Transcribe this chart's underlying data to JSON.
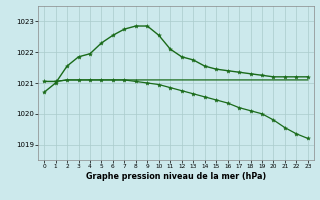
{
  "title": "Graphe pression niveau de la mer (hPa)",
  "bg_color": "#cce9ec",
  "grid_color": "#aacccc",
  "line_color": "#1a6b1a",
  "xlim": [
    -0.5,
    23.5
  ],
  "ylim": [
    1018.5,
    1023.5
  ],
  "yticks": [
    1019,
    1020,
    1021,
    1022,
    1023
  ],
  "xticks": [
    0,
    1,
    2,
    3,
    4,
    5,
    6,
    7,
    8,
    9,
    10,
    11,
    12,
    13,
    14,
    15,
    16,
    17,
    18,
    19,
    20,
    21,
    22,
    23
  ],
  "series_hump": {
    "x": [
      0,
      1,
      2,
      3,
      4,
      5,
      6,
      7,
      8,
      9,
      10,
      11,
      12,
      13,
      14,
      15,
      16,
      17,
      18,
      19,
      20,
      21,
      22,
      23
    ],
    "y": [
      1020.7,
      1021.0,
      1021.55,
      1021.85,
      1021.95,
      1022.3,
      1022.55,
      1022.75,
      1022.85,
      1022.85,
      1022.55,
      1022.1,
      1021.85,
      1021.75,
      1021.55,
      1021.45,
      1021.4,
      1021.35,
      1021.3,
      1021.25,
      1021.2,
      1021.2,
      1021.2,
      1021.2
    ]
  },
  "series_flat": {
    "x": [
      0,
      1,
      2,
      3,
      4,
      5,
      6,
      7,
      8,
      9,
      10,
      11,
      12,
      13,
      14,
      15,
      16,
      17,
      18,
      19,
      20,
      21,
      22,
      23
    ],
    "y": [
      1021.05,
      1021.05,
      1021.1,
      1021.1,
      1021.1,
      1021.1,
      1021.1,
      1021.1,
      1021.1,
      1021.1,
      1021.1,
      1021.1,
      1021.1,
      1021.1,
      1021.1,
      1021.1,
      1021.1,
      1021.1,
      1021.1,
      1021.1,
      1021.1,
      1021.1,
      1021.1,
      1021.1
    ]
  },
  "series_descend": {
    "x": [
      0,
      1,
      2,
      3,
      4,
      5,
      6,
      7,
      8,
      9,
      10,
      11,
      12,
      13,
      14,
      15,
      16,
      17,
      18,
      19,
      20,
      21,
      22,
      23
    ],
    "y": [
      1021.05,
      1021.05,
      1021.1,
      1021.1,
      1021.1,
      1021.1,
      1021.1,
      1021.1,
      1021.05,
      1021.0,
      1020.95,
      1020.85,
      1020.75,
      1020.65,
      1020.55,
      1020.45,
      1020.35,
      1020.2,
      1020.1,
      1020.0,
      1019.8,
      1019.55,
      1019.35,
      1019.2
    ]
  }
}
